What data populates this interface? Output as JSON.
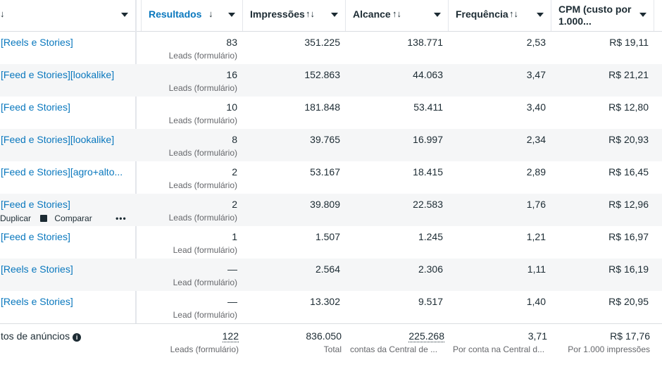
{
  "header": {
    "first_col_arrow": "↓",
    "columns": [
      {
        "label": "Resultados",
        "sort": "↓"
      },
      {
        "label": "Impressões",
        "sort": "↑↓"
      },
      {
        "label": "Alcance",
        "sort": "↑↓"
      },
      {
        "label": "Frequência",
        "sort": "↑↓"
      },
      {
        "label": "CPM (custo por",
        "label2": "1.000..."
      }
    ]
  },
  "rows": [
    {
      "name": "[Reels e Stories]",
      "results": "83",
      "results_sub": "Leads (formulário)",
      "impressions": "351.225",
      "reach": "138.771",
      "frequency": "2,53",
      "cpm": "R$ 19,11"
    },
    {
      "name": "[Feed e Stories][lookalike]",
      "results": "16",
      "results_sub": "Leads (formulário)",
      "impressions": "152.863",
      "reach": "44.063",
      "frequency": "3,47",
      "cpm": "R$ 21,21"
    },
    {
      "name": "[Feed e Stories]",
      "results": "10",
      "results_sub": "Leads (formulário)",
      "impressions": "181.848",
      "reach": "53.411",
      "frequency": "3,40",
      "cpm": "R$ 12,80"
    },
    {
      "name": "[Feed e Stories][lookalike]",
      "results": "8",
      "results_sub": "Leads (formulário)",
      "impressions": "39.765",
      "reach": "16.997",
      "frequency": "2,34",
      "cpm": "R$ 20,93"
    },
    {
      "name": "[Feed e Stories][agro+alto...",
      "results": "2",
      "results_sub": "Leads (formulário)",
      "impressions": "53.167",
      "reach": "18.415",
      "frequency": "2,89",
      "cpm": "R$ 16,45"
    },
    {
      "name": "[Feed e Stories]",
      "results": "2",
      "results_sub": "Leads (formulário)",
      "impressions": "39.809",
      "reach": "22.583",
      "frequency": "1,76",
      "cpm": "R$ 12,96",
      "actions": {
        "duplicate": "Duplicar",
        "compare": "Comparar",
        "more": "•••"
      }
    },
    {
      "name": "[Feed e Stories]",
      "results": "1",
      "results_sub": "Lead (formulário)",
      "impressions": "1.507",
      "reach": "1.245",
      "frequency": "1,21",
      "cpm": "R$ 16,97"
    },
    {
      "name": "[Reels e Stories]",
      "results": "—",
      "results_sub": "Lead (formulário)",
      "impressions": "2.564",
      "reach": "2.306",
      "frequency": "1,11",
      "cpm": "R$ 16,19"
    },
    {
      "name": "[Reels e Stories]",
      "results": "—",
      "results_sub": "Lead (formulário)",
      "impressions": "13.302",
      "reach": "9.517",
      "frequency": "1,40",
      "cpm": "R$ 20,95"
    }
  ],
  "totals": {
    "label": "tos de anúncios",
    "info": "i",
    "results": "122",
    "results_sub": "Leads (formulário)",
    "impressions": "836.050",
    "impressions_sub": "Total",
    "reach": "225.268",
    "reach_sub": "contas da Central de ...",
    "frequency": "3,71",
    "frequency_sub": "Por conta na Central d...",
    "cpm": "R$ 17,76",
    "cpm_sub": "Por 1.000 impressões"
  }
}
